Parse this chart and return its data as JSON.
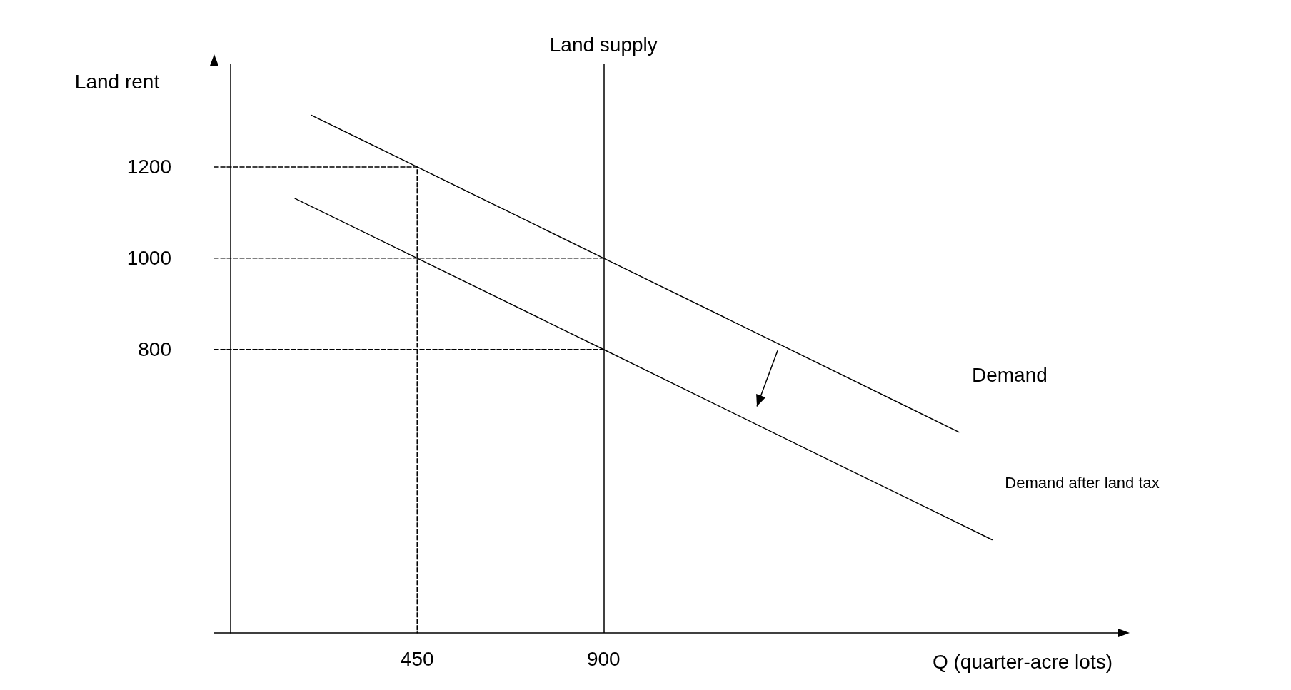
{
  "chart_data": {
    "type": "line",
    "xlabel": "Q (quarter-acre lots)",
    "ylabel": "Land rent",
    "xlim": [
      -40,
      2146
    ],
    "ylim": [
      179,
      1425
    ],
    "xticks": [
      450,
      900
    ],
    "yticks": [
      800,
      1000,
      1200
    ],
    "series": [
      {
        "name": "Demand",
        "color": "#000000",
        "x": [
          195,
          450,
          900,
          1758
        ],
        "values": [
          1313,
          1200,
          1000,
          619
        ]
      },
      {
        "name": "Demand after land tax",
        "color": "#000000",
        "x": [
          155,
          450,
          900,
          1838
        ],
        "values": [
          1131,
          1000,
          800,
          383
        ]
      },
      {
        "type": "line",
        "color": "#000000",
        "line_style": "dashed",
        "x": [
          -40,
          450,
          450
        ],
        "values": [
          1200,
          1200,
          179
        ]
      },
      {
        "type": "line",
        "color": "#000000",
        "line_style": "dashed",
        "x": [
          -40,
          900
        ],
        "values": [
          1000,
          1000
        ]
      },
      {
        "type": "line",
        "color": "#000000",
        "line_style": "dashed",
        "x": [
          -40,
          900
        ],
        "values": [
          800,
          800
        ]
      }
    ],
    "ref_lines": [
      {
        "axis": "x",
        "value": 900,
        "label": "Land supply",
        "color": "#000000",
        "line_style": "solid"
      }
    ],
    "grid": false,
    "legend": false,
    "marker": "none"
  }
}
